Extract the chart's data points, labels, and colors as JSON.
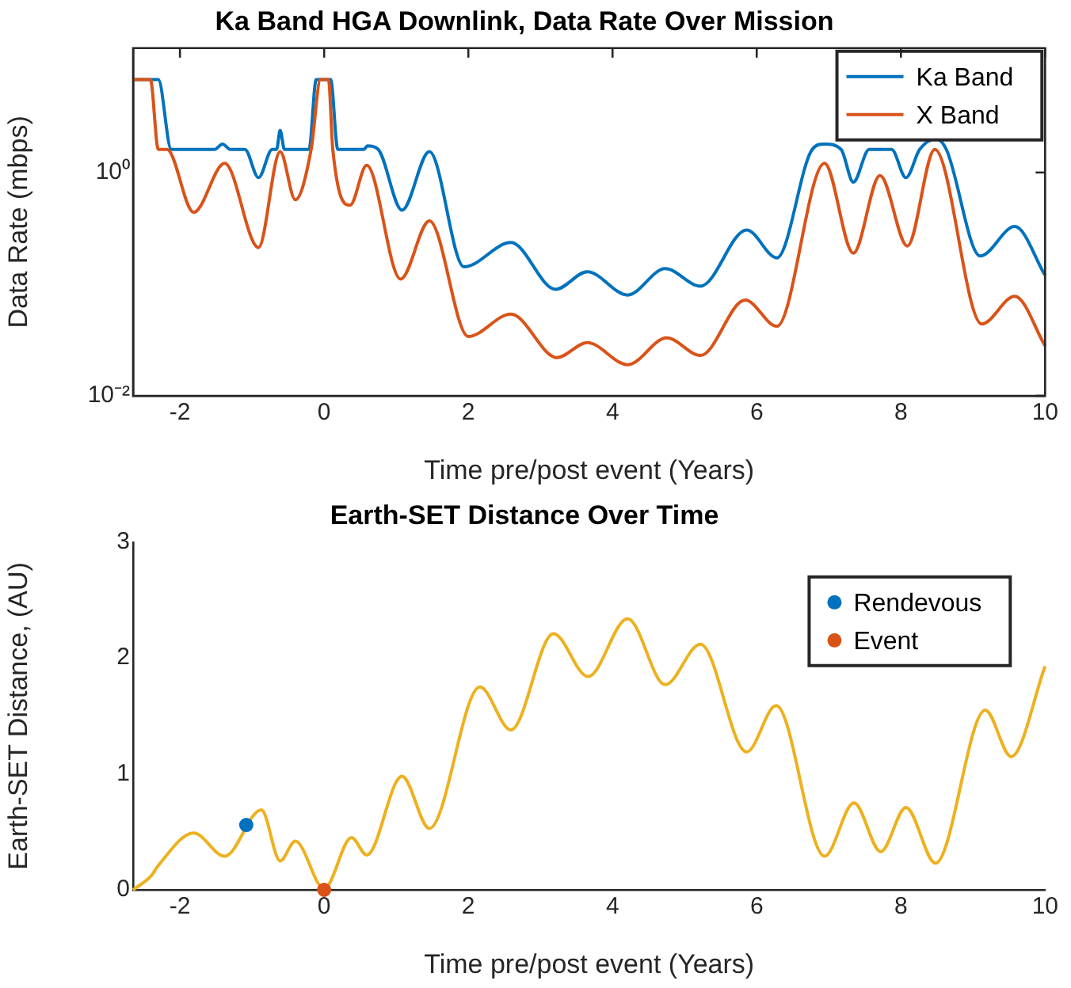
{
  "chart_data": [
    {
      "type": "line",
      "title": "Ka Band HGA Downlink, Data Rate Over Mission",
      "xlabel": "Time pre/post event (Years)",
      "ylabel": "Data Rate (mbps)",
      "log": "y",
      "xlim": [
        -2.65,
        10
      ],
      "xticks": [
        -2,
        0,
        2,
        4,
        6,
        8,
        10
      ],
      "ylim": [
        0.01,
        13
      ],
      "yticks": [
        {
          "value": 0.01,
          "label": "10⁻²"
        },
        {
          "value": 1,
          "label": "10⁰"
        }
      ],
      "legend": "top right",
      "marker": "none",
      "line_style": "solid",
      "series": [
        {
          "name": "Ka Band",
          "color": "#0072bd",
          "x": [
            -2.65,
            -2.3,
            -2.12,
            -1.52,
            -1.41,
            -1.3,
            -1.1,
            -0.91,
            -0.72,
            -0.66,
            -0.61,
            -0.55,
            -0.21,
            -0.11,
            0.09,
            0.19,
            0.55,
            0.6,
            0.75,
            1.08,
            1.46,
            1.94,
            2.59,
            3.21,
            3.65,
            4.21,
            4.73,
            5.22,
            5.86,
            6.28,
            6.77,
            6.94,
            7.17,
            7.34,
            7.56,
            7.87,
            8.07,
            8.26,
            8.49,
            8.63,
            9.1,
            9.58,
            10
          ],
          "values": [
            6.8,
            6.8,
            1.61,
            1.61,
            1.8,
            1.61,
            1.61,
            0.9,
            1.61,
            1.61,
            2.38,
            1.61,
            1.61,
            6.8,
            6.8,
            1.61,
            1.61,
            1.73,
            1.61,
            0.46,
            1.54,
            0.143,
            0.236,
            0.09,
            0.129,
            0.08,
            0.138,
            0.096,
            0.306,
            0.172,
            1.61,
            1.8,
            1.61,
            0.82,
            1.61,
            1.61,
            0.9,
            1.61,
            2.0,
            1.61,
            0.179,
            0.329,
            0.12
          ]
        },
        {
          "name": "X Band",
          "color": "#d95319",
          "x": [
            -2.65,
            -2.41,
            -2.3,
            -2.18,
            -1.81,
            -1.38,
            -0.91,
            -0.61,
            -0.4,
            -0.18,
            -0.05,
            0.06,
            0.12,
            0.36,
            0.59,
            1.06,
            1.46,
            2.0,
            2.59,
            3.23,
            3.65,
            4.21,
            4.75,
            5.22,
            5.84,
            6.28,
            6.94,
            7.34,
            7.71,
            8.09,
            8.47,
            9.12,
            9.58,
            10
          ],
          "values": [
            6.8,
            6.8,
            1.61,
            1.61,
            0.44,
            1.21,
            0.213,
            1.54,
            0.57,
            1.61,
            6.8,
            6.8,
            1.61,
            0.51,
            1.16,
            0.111,
            0.369,
            0.034,
            0.054,
            0.022,
            0.03,
            0.019,
            0.033,
            0.023,
            0.072,
            0.042,
            1.21,
            0.19,
            0.94,
            0.22,
            1.61,
            0.044,
            0.078,
            0.028
          ]
        }
      ]
    },
    {
      "type": "line",
      "title": "Earth-SET Distance Over Time",
      "xlabel": "Time pre/post event (Years)",
      "ylabel": "Earth-SET Distance, (AU)",
      "xlim": [
        -2.65,
        10
      ],
      "xticks": [
        -2,
        0,
        2,
        4,
        6,
        8,
        10
      ],
      "ylim": [
        0,
        3
      ],
      "yticks": [
        0,
        1,
        2,
        3
      ],
      "legend": "top right",
      "line_style": "solid",
      "series": [
        {
          "color": "#edb120",
          "marker": "none",
          "x": [
            -2.65,
            -2.4,
            -2.3,
            -1.81,
            -1.38,
            -0.87,
            -0.61,
            -0.4,
            0.0,
            0.38,
            0.59,
            1.08,
            1.46,
            2.16,
            2.59,
            3.18,
            3.66,
            4.21,
            4.73,
            5.22,
            5.86,
            6.27,
            6.94,
            7.35,
            7.72,
            8.07,
            8.48,
            9.17,
            9.53,
            10
          ],
          "values": [
            0,
            0.12,
            0.21,
            0.49,
            0.29,
            0.69,
            0.25,
            0.42,
            0.01,
            0.45,
            0.3,
            0.98,
            0.53,
            1.75,
            1.38,
            2.21,
            1.84,
            2.34,
            1.77,
            2.12,
            1.19,
            1.59,
            0.29,
            0.75,
            0.33,
            0.71,
            0.23,
            1.55,
            1.15,
            1.93
          ]
        },
        {
          "type": "scatter",
          "name": "Rendevous",
          "color": "#0072bd",
          "marker": "circle",
          "x": [
            -1.08
          ],
          "values": [
            0.56
          ]
        },
        {
          "type": "scatter",
          "name": "Event",
          "color": "#d95319",
          "marker": "circle",
          "x": [
            0
          ],
          "values": [
            0
          ]
        }
      ]
    }
  ]
}
